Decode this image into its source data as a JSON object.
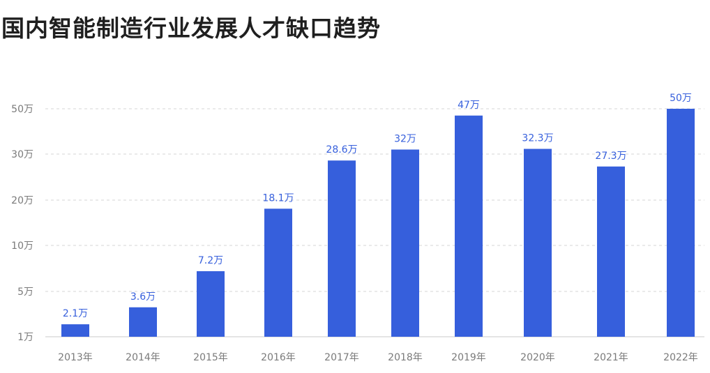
{
  "chart_data": {
    "type": "bar",
    "title": "国内智能制造行业发展人才缺口趋势",
    "categories": [
      "2013年",
      "2014年",
      "2015年",
      "2016年",
      "2017年",
      "2018年",
      "2019年",
      "2020年",
      "2021年",
      "2022年"
    ],
    "series": [
      {
        "values": [
          2.1,
          3.6,
          7.2,
          18.1,
          28.6,
          32,
          47,
          32.3,
          27.3,
          50
        ],
        "value_labels": [
          "2.1万",
          "3.6万",
          "7.2万",
          "18.1万",
          "28.6万",
          "32万",
          "47万",
          "32.3万",
          "27.3万",
          "50万"
        ]
      }
    ],
    "y_tick_labels": [
      "1万",
      "5万",
      "10万",
      "20万",
      "30万",
      "50万"
    ],
    "y_tick_values": [
      1,
      5,
      10,
      20,
      30,
      50
    ],
    "y_scale": "piecewise (non-linear)",
    "grid": "horizontal dashed",
    "xlabel": "",
    "ylabel": "",
    "colors": {
      "bar": "#365fdc",
      "label": "#365fdc",
      "tick": "#7a7a7a",
      "grid": "#d4d4d4",
      "title": "#1f1f1f"
    }
  }
}
